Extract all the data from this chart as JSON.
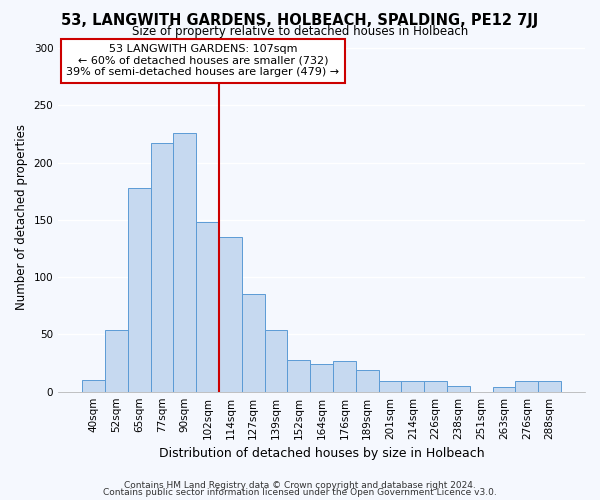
{
  "title": "53, LANGWITH GARDENS, HOLBEACH, SPALDING, PE12 7JJ",
  "subtitle": "Size of property relative to detached houses in Holbeach",
  "xlabel": "Distribution of detached houses by size in Holbeach",
  "ylabel": "Number of detached properties",
  "bar_labels": [
    "40sqm",
    "52sqm",
    "65sqm",
    "77sqm",
    "90sqm",
    "102sqm",
    "114sqm",
    "127sqm",
    "139sqm",
    "152sqm",
    "164sqm",
    "176sqm",
    "189sqm",
    "201sqm",
    "214sqm",
    "226sqm",
    "238sqm",
    "251sqm",
    "263sqm",
    "276sqm",
    "288sqm"
  ],
  "bar_heights": [
    10,
    54,
    178,
    217,
    226,
    148,
    135,
    85,
    54,
    28,
    24,
    27,
    19,
    9,
    9,
    9,
    5,
    0,
    4,
    9,
    9
  ],
  "bar_color": "#c6d9f0",
  "bar_edge_color": "#5b9bd5",
  "vline_x_idx": 6,
  "vline_color": "#cc0000",
  "annotation_text": "53 LANGWITH GARDENS: 107sqm\n← 60% of detached houses are smaller (732)\n39% of semi-detached houses are larger (479) →",
  "annotation_box_color": "#ffffff",
  "annotation_box_edge": "#cc0000",
  "ylim": [
    0,
    305
  ],
  "yticks": [
    0,
    50,
    100,
    150,
    200,
    250,
    300
  ],
  "footer1": "Contains HM Land Registry data © Crown copyright and database right 2024.",
  "footer2": "Contains public sector information licensed under the Open Government Licence v3.0.",
  "bg_color": "#f5f8fe",
  "plot_bg_color": "#f5f8fe",
  "grid_color": "#ffffff"
}
